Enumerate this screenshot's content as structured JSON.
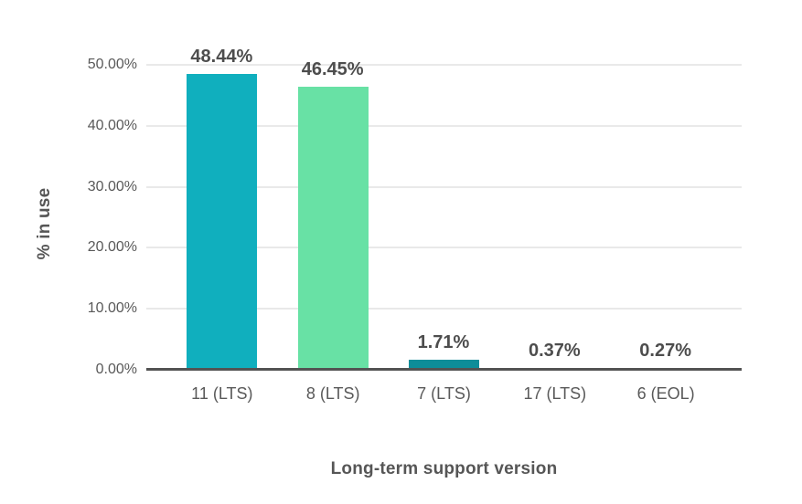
{
  "chart_data": {
    "type": "bar",
    "title": "",
    "xlabel": "Long-term support version",
    "ylabel": "% in use",
    "categories": [
      "11 (LTS)",
      "8 (LTS)",
      "7 (LTS)",
      "17 (LTS)",
      "6 (EOL)"
    ],
    "values": [
      48.44,
      46.45,
      1.71,
      0.37,
      0.27
    ],
    "value_labels": [
      "48.44%",
      "46.45%",
      "1.71%",
      "0.37%",
      "0.27%"
    ],
    "bar_colors": [
      "#10afbe",
      "#68e1a5",
      "#0e8d99",
      "#f4581e",
      "#ef9222"
    ],
    "y_ticks": [
      {
        "value": 0,
        "label": "0.00%"
      },
      {
        "value": 10,
        "label": "10.00%"
      },
      {
        "value": 20,
        "label": "20.00%"
      },
      {
        "value": 30,
        "label": "30.00%"
      },
      {
        "value": 40,
        "label": "40.00%"
      },
      {
        "value": 50,
        "label": "50.00%"
      }
    ],
    "ylim": [
      0,
      50
    ],
    "grid": "horizontal",
    "legend": "none"
  },
  "style": {
    "gridline_color": "#e9e9e9",
    "axis_line_color": "#535353",
    "tick_text_color": "#595959",
    "value_label_color": "#4d4d4d",
    "axis_title_color": "#565656",
    "background_color": "#ffffff"
  }
}
